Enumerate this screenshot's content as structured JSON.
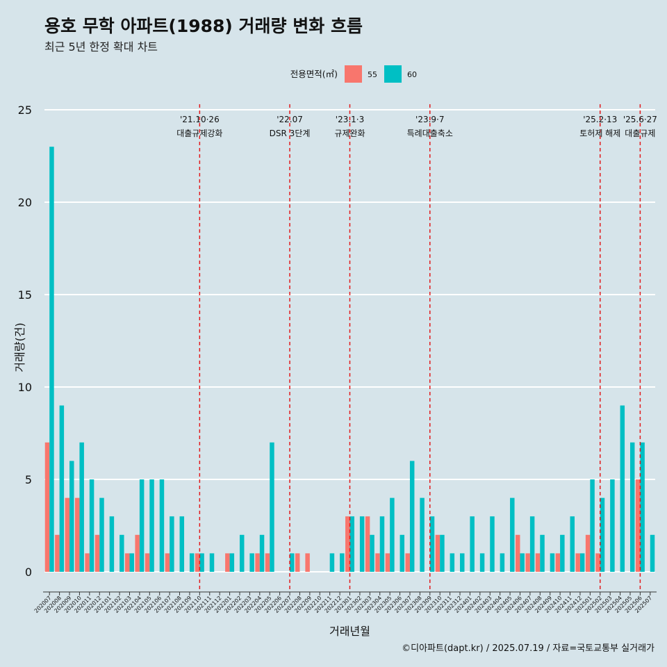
{
  "chart_data": {
    "type": "bar",
    "title": "용호 무학 아파트(1988) 거래량 변화 흐름",
    "subtitle": "최근 5년 한정 확대 차트",
    "xlabel": "거래년월",
    "ylabel": "거래량(건)",
    "ylim": [
      0,
      25
    ],
    "yticks": [
      0,
      5,
      10,
      15,
      20,
      25
    ],
    "grid": "horizontal",
    "legend": {
      "title": "전용면적(㎡)",
      "placement": "top"
    },
    "caption": "©디아파트(dapt.kr) / 2025.07.19 / 자료=국토교통부 실거래가",
    "categories": [
      "202007",
      "202008",
      "202009",
      "202010",
      "202011",
      "202012",
      "202101",
      "202102",
      "202103",
      "202104",
      "202105",
      "202106",
      "202107",
      "202108",
      "202109",
      "202110",
      "202111",
      "202112",
      "202201",
      "202202",
      "202203",
      "202204",
      "202205",
      "202206",
      "202207",
      "202208",
      "202209",
      "202210",
      "202211",
      "202212",
      "202301",
      "202302",
      "202303",
      "202304",
      "202305",
      "202306",
      "202307",
      "202308",
      "202309",
      "202310",
      "202311",
      "202312",
      "202401",
      "202402",
      "202403",
      "202404",
      "202405",
      "202406",
      "202407",
      "202408",
      "202409",
      "202410",
      "202411",
      "202412",
      "202501",
      "202502",
      "202503",
      "202504",
      "202505",
      "202506",
      "202507"
    ],
    "series": [
      {
        "name": "55",
        "color": "#f8766d",
        "values": [
          7,
          2,
          4,
          4,
          1,
          2,
          0,
          0,
          1,
          2,
          1,
          0,
          1,
          0,
          0,
          1,
          0,
          0,
          1,
          0,
          0,
          1,
          1,
          0,
          0,
          1,
          1,
          0,
          0,
          0,
          3,
          0,
          3,
          1,
          1,
          0,
          1,
          0,
          0,
          2,
          0,
          0,
          0,
          0,
          0,
          0,
          0,
          2,
          1,
          1,
          0,
          1,
          0,
          1,
          2,
          1,
          0,
          0,
          0,
          5,
          0
        ]
      },
      {
        "name": "60",
        "color": "#00bfc4",
        "values": [
          23,
          9,
          6,
          7,
          5,
          4,
          3,
          2,
          1,
          5,
          5,
          5,
          3,
          3,
          1,
          1,
          1,
          0,
          1,
          2,
          1,
          2,
          7,
          0,
          1,
          0,
          0,
          0,
          1,
          1,
          3,
          3,
          2,
          3,
          4,
          2,
          6,
          4,
          3,
          2,
          1,
          1,
          3,
          1,
          3,
          1,
          4,
          1,
          3,
          2,
          1,
          2,
          3,
          1,
          5,
          4,
          5,
          9,
          7,
          7,
          2
        ]
      }
    ],
    "annotations": [
      {
        "category": "202110",
        "date": "'21.10·26",
        "label": "대출규제강화"
      },
      {
        "category": "202207",
        "date": "'22.07",
        "label": "DSR 3단계"
      },
      {
        "category": "202301",
        "date": "'23.1·3",
        "label": "규제완화"
      },
      {
        "category": "202309",
        "date": "'23.9·7",
        "label": "특례대출축소"
      },
      {
        "category": "202502",
        "date": "'25.2·13",
        "label": "토허제 해제"
      },
      {
        "category": "202506",
        "date": "'25.6·27",
        "label": "대출규제"
      }
    ]
  }
}
